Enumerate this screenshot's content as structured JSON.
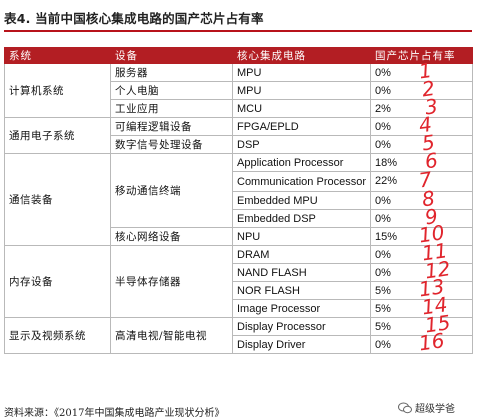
{
  "title": "表4. 当前中国核心集成电路的国产芯片占有率",
  "headers": [
    "系统",
    "设备",
    "核心集成电路",
    "国产芯片占有率"
  ],
  "groups": [
    {
      "system": "计算机系统",
      "devices": [
        {
          "device": "服务器",
          "chips": [
            {
              "name": "MPU",
              "share": "0%"
            }
          ]
        },
        {
          "device": "个人电脑",
          "chips": [
            {
              "name": "MPU",
              "share": "0%"
            }
          ]
        },
        {
          "device": "工业应用",
          "chips": [
            {
              "name": "MCU",
              "share": "2%"
            }
          ]
        }
      ]
    },
    {
      "system": "通用电子系统",
      "devices": [
        {
          "device": "可编程逻辑设备",
          "chips": [
            {
              "name": "FPGA/EPLD",
              "share": "0%"
            }
          ]
        },
        {
          "device": "数字信号处理设备",
          "chips": [
            {
              "name": "DSP",
              "share": "0%"
            }
          ]
        }
      ]
    },
    {
      "system": "通信装备",
      "devices": [
        {
          "device": "移动通信终端",
          "chips": [
            {
              "name": "Application Processor",
              "share": "18%"
            },
            {
              "name": "Communication Processor",
              "share": "22%"
            },
            {
              "name": "Embedded MPU",
              "share": "0%"
            },
            {
              "name": "Embedded DSP",
              "share": "0%"
            }
          ]
        },
        {
          "device": "核心网络设备",
          "chips": [
            {
              "name": "NPU",
              "share": "15%"
            }
          ]
        }
      ]
    },
    {
      "system": "内存设备",
      "devices": [
        {
          "device": "半导体存储器",
          "chips": [
            {
              "name": "DRAM",
              "share": "0%"
            },
            {
              "name": "NAND FLASH",
              "share": "0%"
            },
            {
              "name": "NOR FLASH",
              "share": "5%"
            },
            {
              "name": "Image Processor",
              "share": "5%"
            }
          ]
        }
      ]
    },
    {
      "system": "显示及视频系统",
      "devices": [
        {
          "device": "高清电视/智能电视",
          "chips": [
            {
              "name": "Display Processor",
              "share": "5%"
            },
            {
              "name": "Display Driver",
              "share": "0%"
            }
          ]
        }
      ]
    }
  ],
  "annotations": [
    "1",
    "2",
    "3",
    "4",
    "5",
    "6",
    "7",
    "8",
    "9",
    "10",
    "11",
    "12",
    "13",
    "14",
    "15",
    "16"
  ],
  "source": "资料来源：《2017年中国集成电路产业现状分析》",
  "watermark": "超级学爸",
  "colors": {
    "header_bg": "#b31e23",
    "title_rule": "#b8131b",
    "handwriting": "#e0242c"
  }
}
